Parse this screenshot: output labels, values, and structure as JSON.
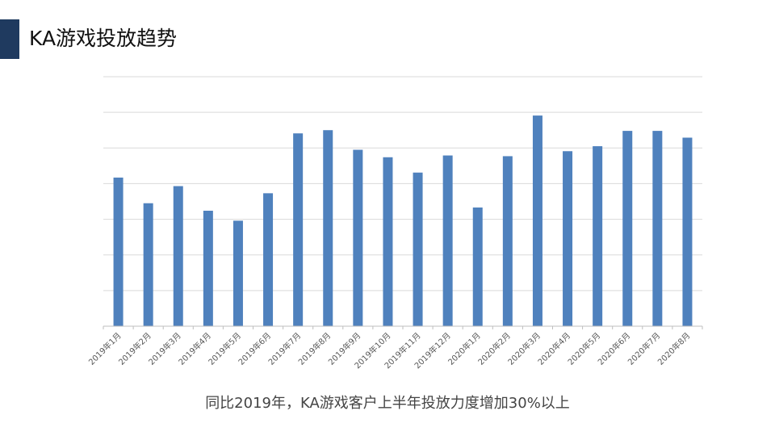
{
  "page": {
    "title": "KA游戏投放趋势",
    "footnote": "同比2019年，KA游戏客户上半年投放力度增加30%以上",
    "accent_color": "#1f3a5f"
  },
  "chart_data": {
    "type": "bar",
    "title": "",
    "xlabel": "",
    "ylabel": "",
    "bar_color": "#4f81bd",
    "grid": true,
    "ylim": [
      0,
      7
    ],
    "categories": [
      "2019年1月",
      "2019年2月",
      "2019年3月",
      "2019年4月",
      "2019年5月",
      "2019年6月",
      "2019年7月",
      "2019年8月",
      "2019年9月",
      "2019年10月",
      "2019年11月",
      "2019年12月",
      "2020年1月",
      "2020年2月",
      "2020年3月",
      "2020年4月",
      "2020年5月",
      "2020年6月",
      "2020年7月",
      "2020年8月"
    ],
    "values": [
      4.17,
      3.45,
      3.93,
      3.24,
      2.96,
      3.73,
      5.41,
      5.5,
      4.95,
      4.74,
      4.31,
      4.79,
      3.33,
      4.77,
      5.91,
      4.91,
      5.05,
      5.48,
      5.48,
      5.29
    ]
  }
}
